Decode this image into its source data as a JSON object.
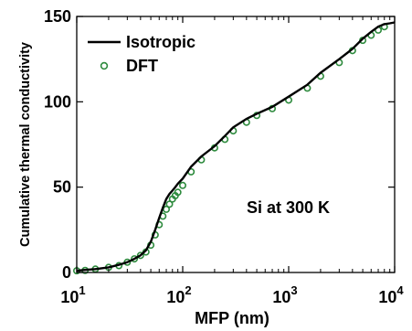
{
  "chart_data": {
    "type": "line",
    "title": "",
    "xlabel": "MFP (nm)",
    "ylabel": "Cumulative thermal conductivity",
    "xscale": "log",
    "xlim": [
      10,
      10000
    ],
    "ylim": [
      0,
      150
    ],
    "x_ticks": [
      {
        "value": 10,
        "base": "10",
        "exp": "1"
      },
      {
        "value": 100,
        "base": "10",
        "exp": "2"
      },
      {
        "value": 1000,
        "base": "10",
        "exp": "3"
      },
      {
        "value": 10000,
        "base": "10",
        "exp": "4"
      }
    ],
    "y_ticks": [
      {
        "value": 0,
        "label": "0"
      },
      {
        "value": 50,
        "label": "50"
      },
      {
        "value": 100,
        "label": "100"
      },
      {
        "value": 150,
        "label": "150"
      }
    ],
    "grid": false,
    "legend": {
      "position": "top-left"
    },
    "annotation": "Si at 300 K",
    "series": [
      {
        "name": "Isotropic",
        "style": "line",
        "color": "#000000",
        "points": [
          [
            10,
            1
          ],
          [
            12,
            1.5
          ],
          [
            15,
            2
          ],
          [
            20,
            3
          ],
          [
            25,
            4.5
          ],
          [
            30,
            6
          ],
          [
            35,
            8
          ],
          [
            40,
            10
          ],
          [
            45,
            13
          ],
          [
            50,
            18
          ],
          [
            55,
            25
          ],
          [
            60,
            32
          ],
          [
            65,
            38
          ],
          [
            70,
            43
          ],
          [
            75,
            46
          ],
          [
            80,
            48
          ],
          [
            85,
            50
          ],
          [
            90,
            52
          ],
          [
            100,
            55
          ],
          [
            120,
            62
          ],
          [
            150,
            68
          ],
          [
            200,
            74
          ],
          [
            250,
            80
          ],
          [
            300,
            85
          ],
          [
            400,
            90
          ],
          [
            500,
            93
          ],
          [
            700,
            97
          ],
          [
            1000,
            103
          ],
          [
            1500,
            110
          ],
          [
            2000,
            117
          ],
          [
            3000,
            125
          ],
          [
            4000,
            131
          ],
          [
            5000,
            137
          ],
          [
            6000,
            141
          ],
          [
            7000,
            144
          ],
          [
            8000,
            145.5
          ],
          [
            9000,
            146
          ],
          [
            10000,
            146.5
          ]
        ]
      },
      {
        "name": "DFT",
        "style": "markers",
        "color": "#2e8b3e",
        "points": [
          [
            10,
            1
          ],
          [
            12,
            1.2
          ],
          [
            15,
            2
          ],
          [
            20,
            3
          ],
          [
            25,
            4
          ],
          [
            30,
            6
          ],
          [
            35,
            8
          ],
          [
            40,
            10
          ],
          [
            45,
            12
          ],
          [
            50,
            16
          ],
          [
            55,
            22
          ],
          [
            60,
            28
          ],
          [
            65,
            33
          ],
          [
            70,
            37
          ],
          [
            75,
            40
          ],
          [
            80,
            43
          ],
          [
            85,
            45
          ],
          [
            90,
            47
          ],
          [
            100,
            51
          ],
          [
            120,
            59
          ],
          [
            150,
            66
          ],
          [
            200,
            73
          ],
          [
            250,
            78
          ],
          [
            300,
            83
          ],
          [
            400,
            88
          ],
          [
            500,
            92
          ],
          [
            700,
            96
          ],
          [
            1000,
            101
          ],
          [
            1500,
            108
          ],
          [
            2000,
            115
          ],
          [
            3000,
            123
          ],
          [
            4000,
            130
          ],
          [
            5000,
            136
          ],
          [
            6000,
            139
          ],
          [
            7000,
            142
          ],
          [
            8000,
            144
          ]
        ]
      }
    ]
  }
}
